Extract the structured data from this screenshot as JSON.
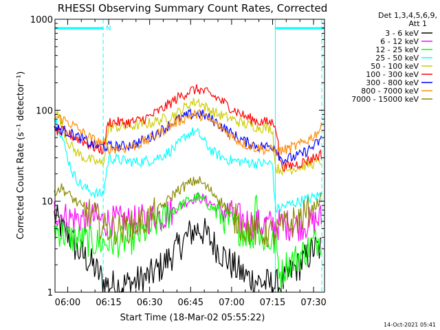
{
  "chart_data": {
    "type": "line",
    "title": "RHESSI Observing Summary Count Rates, Corrected",
    "xlabel": "Start Time (18-Mar-02 05:55:22)",
    "ylabel": "Corrected Count Rate (s⁻¹ detector⁻¹)",
    "yscale": "log",
    "ylim": [
      1,
      1000
    ],
    "y_ticks": [
      {
        "value": 1,
        "label": "1"
      },
      {
        "value": 10,
        "label": "10"
      },
      {
        "value": 100,
        "label": "100"
      },
      {
        "value": 1000,
        "label": "1000"
      }
    ],
    "xlim": [
      "05:55:22",
      "07:34:00"
    ],
    "x_ticks": [
      {
        "time": "06:00",
        "label": "06:00"
      },
      {
        "time": "06:15",
        "label": "06:15"
      },
      {
        "time": "06:30",
        "label": "06:30"
      },
      {
        "time": "06:45",
        "label": "06:45"
      },
      {
        "time": "07:00",
        "label": "07:00"
      },
      {
        "time": "07:15",
        "label": "07:15"
      },
      {
        "time": "07:30",
        "label": "07:30"
      }
    ],
    "legend": {
      "placement": "right",
      "header": [
        "Det 1,3,4,5,6,9,",
        "Att 1"
      ]
    },
    "annotations": {
      "night_marker": "N",
      "timestamp": "14-Oct-2021 05:41"
    },
    "night_intervals": [
      [
        "05:55:22",
        "06:13:00"
      ],
      [
        "07:16:00",
        "07:34:00"
      ]
    ],
    "dashed_times": [
      "06:13:00",
      "07:33:00"
    ],
    "solid_times": [
      "05:55:22",
      "07:16:00"
    ],
    "series": [
      {
        "name": "3 - 6 keV",
        "color": "#000000",
        "x": [
          "05:55",
          "05:58",
          "06:00",
          "06:03",
          "06:06",
          "06:09",
          "06:12",
          "06:13",
          "06:15",
          "06:20",
          "06:25",
          "06:30",
          "06:35",
          "06:40",
          "06:45",
          "06:48",
          "06:50",
          "06:55",
          "07:00",
          "07:05",
          "07:10",
          "07:15",
          "07:16",
          "07:18",
          "07:20",
          "07:22",
          "07:25",
          "07:28",
          "07:30",
          "07:33"
        ],
        "y": [
          7,
          5,
          4.5,
          3,
          2.5,
          2,
          1.5,
          1.3,
          1.2,
          1.2,
          1.3,
          1.5,
          2,
          3,
          4.5,
          5,
          4.5,
          3,
          2,
          1.5,
          1.3,
          1.2,
          1.2,
          1.2,
          1.4,
          1.7,
          2,
          2.5,
          3,
          3
        ]
      },
      {
        "name": "6 - 12 keV",
        "color": "#ff00ff",
        "x": [
          "05:55",
          "05:58",
          "06:00",
          "06:05",
          "06:10",
          "06:13",
          "06:15",
          "06:20",
          "06:25",
          "06:30",
          "06:35",
          "06:40",
          "06:45",
          "06:48",
          "06:50",
          "06:55",
          "07:00",
          "07:05",
          "07:10",
          "07:15",
          "07:16",
          "07:20",
          "07:25",
          "07:30",
          "07:33"
        ],
        "y": [
          8,
          7,
          6.5,
          6.5,
          6.5,
          6,
          6,
          6,
          6,
          6.5,
          7,
          8.5,
          10.5,
          11,
          10.5,
          8.5,
          7,
          6,
          5.5,
          5.5,
          5.5,
          5.5,
          5.5,
          6,
          6.5
        ]
      },
      {
        "name": "12 - 25 keV",
        "color": "#00ff00",
        "x": [
          "05:55",
          "05:58",
          "06:00",
          "06:05",
          "06:10",
          "06:13",
          "06:15",
          "06:20",
          "06:25",
          "06:30",
          "06:35",
          "06:40",
          "06:45",
          "06:48",
          "06:50",
          "06:55",
          "07:00",
          "07:05",
          "07:08",
          "07:09",
          "07:10",
          "07:15",
          "07:16",
          "07:18",
          "07:20",
          "07:25",
          "07:30",
          "07:33"
        ],
        "y": [
          5,
          4.5,
          4,
          3.8,
          3.5,
          3.5,
          3.5,
          3.6,
          4,
          5,
          6.5,
          8.5,
          10.5,
          11,
          10,
          7.5,
          5.5,
          4.5,
          4,
          15,
          4,
          3.5,
          3.5,
          1.5,
          2,
          2.5,
          3.5,
          4
        ]
      },
      {
        "name": "25 - 50 keV",
        "color": "#00ffff",
        "x": [
          "05:55",
          "05:56",
          "05:58",
          "06:00",
          "06:02",
          "06:05",
          "06:08",
          "06:11",
          "06:13",
          "06:15",
          "06:20",
          "06:25",
          "06:30",
          "06:35",
          "06:40",
          "06:43",
          "06:46",
          "06:48",
          "06:50",
          "06:53",
          "06:57",
          "07:00",
          "07:05",
          "07:10",
          "07:15",
          "07:16",
          "07:20",
          "07:25",
          "07:30",
          "07:33"
        ],
        "y": [
          80,
          75,
          50,
          30,
          20,
          15,
          13,
          12,
          12,
          30,
          28,
          27,
          28,
          32,
          40,
          52,
          58,
          55,
          45,
          35,
          30,
          28,
          27,
          26,
          26,
          8,
          9,
          10,
          11,
          12
        ]
      },
      {
        "name": "50 - 100 keV",
        "color": "#cccc00",
        "x": [
          "05:55",
          "05:56",
          "05:58",
          "06:00",
          "06:03",
          "06:06",
          "06:09",
          "06:12",
          "06:13",
          "06:15",
          "06:20",
          "06:25",
          "06:30",
          "06:35",
          "06:40",
          "06:45",
          "06:48",
          "06:50",
          "06:55",
          "07:00",
          "07:05",
          "07:10",
          "07:15",
          "07:16",
          "07:20",
          "07:25",
          "07:30",
          "07:33"
        ],
        "y": [
          100,
          95,
          70,
          45,
          35,
          30,
          28,
          26,
          26,
          65,
          65,
          68,
          72,
          80,
          92,
          120,
          125,
          110,
          90,
          80,
          70,
          65,
          63,
          23,
          22,
          24,
          26,
          28
        ]
      },
      {
        "name": "100 - 300 keV",
        "color": "#ff0000",
        "x": [
          "05:55",
          "05:58",
          "06:00",
          "06:03",
          "06:06",
          "06:09",
          "06:12",
          "06:13",
          "06:15",
          "06:20",
          "06:25",
          "06:30",
          "06:35",
          "06:40",
          "06:45",
          "06:48",
          "06:50",
          "06:55",
          "07:00",
          "07:05",
          "07:10",
          "07:15",
          "07:16",
          "07:18",
          "07:20",
          "07:25",
          "07:30",
          "07:33"
        ],
        "y": [
          60,
          58,
          55,
          50,
          45,
          40,
          37,
          37,
          75,
          73,
          75,
          85,
          105,
          135,
          165,
          170,
          160,
          135,
          105,
          85,
          75,
          73,
          73,
          25,
          24,
          26,
          30,
          33
        ]
      },
      {
        "name": "300 - 800 keV",
        "color": "#0000ff",
        "x": [
          "05:55",
          "05:58",
          "06:00",
          "06:03",
          "06:06",
          "06:09",
          "06:12",
          "06:13",
          "06:15",
          "06:20",
          "06:25",
          "06:30",
          "06:35",
          "06:40",
          "06:45",
          "06:48",
          "06:50",
          "06:55",
          "07:00",
          "07:05",
          "07:10",
          "07:15",
          "07:16",
          "07:18",
          "07:20",
          "07:25",
          "07:30",
          "07:33"
        ],
        "y": [
          65,
          60,
          58,
          52,
          47,
          42,
          40,
          40,
          40,
          40,
          43,
          50,
          62,
          78,
          90,
          92,
          88,
          72,
          55,
          45,
          40,
          40,
          40,
          29,
          29,
          32,
          40,
          48
        ]
      },
      {
        "name": "800 - 7000 keV",
        "color": "#ff8800",
        "x": [
          "05:55",
          "05:58",
          "06:00",
          "06:03",
          "06:06",
          "06:09",
          "06:12",
          "06:13",
          "06:15",
          "06:20",
          "06:25",
          "06:30",
          "06:35",
          "06:40",
          "06:45",
          "06:48",
          "06:50",
          "06:55",
          "07:00",
          "07:05",
          "07:10",
          "07:15",
          "07:16",
          "07:18",
          "07:20",
          "07:25",
          "07:30",
          "07:33"
        ],
        "y": [
          85,
          80,
          75,
          65,
          55,
          48,
          44,
          44,
          38,
          38,
          41,
          48,
          60,
          75,
          88,
          90,
          85,
          68,
          52,
          42,
          38,
          36,
          36,
          36,
          37,
          42,
          52,
          65
        ]
      },
      {
        "name": "7000 - 15000 keV",
        "color": "#888800",
        "x": [
          "05:55",
          "05:58",
          "06:00",
          "06:03",
          "06:06",
          "06:09",
          "06:12",
          "06:13",
          "06:15",
          "06:20",
          "06:25",
          "06:30",
          "06:35",
          "06:40",
          "06:45",
          "06:48",
          "06:50",
          "06:55",
          "07:00",
          "07:05",
          "07:10",
          "07:15",
          "07:16",
          "07:18",
          "07:20",
          "07:25",
          "07:30",
          "07:33"
        ],
        "y": [
          13,
          14,
          12,
          10,
          8,
          7,
          6,
          5,
          5,
          5,
          5.5,
          6.5,
          9,
          13,
          16,
          17,
          15,
          11,
          7,
          5,
          4.5,
          4.5,
          4.5,
          5,
          5.5,
          6.5,
          8.5,
          11
        ]
      }
    ]
  }
}
